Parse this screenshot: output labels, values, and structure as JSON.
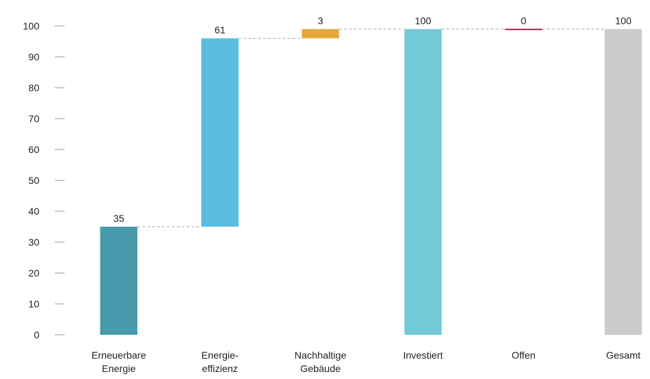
{
  "chart_data": {
    "type": "bar",
    "subtype": "waterfall",
    "title": "",
    "xlabel": "",
    "ylabel": "",
    "ylim": [
      0,
      100
    ],
    "yticks": [
      "0",
      "10",
      "20",
      "30",
      "40",
      "50",
      "60",
      "70",
      "80",
      "90",
      "100"
    ],
    "grid": false,
    "legend": "none",
    "categories": [
      [
        "Erneuerbare",
        "Energie"
      ],
      [
        "Energie-",
        "effizienz"
      ],
      [
        "Nachhaltige",
        "Gebäude"
      ],
      [
        "Investiert"
      ],
      [
        "Offen"
      ],
      [
        "Gesamt"
      ]
    ],
    "bars": [
      {
        "start": 0,
        "end": 35,
        "label": "35",
        "color": "#4799ab"
      },
      {
        "start": 35,
        "end": 96,
        "label": "61",
        "color": "#5bbde0"
      },
      {
        "start": 96,
        "end": 99,
        "label": "3",
        "color": "#e3a93a"
      },
      {
        "start": 0,
        "end": 99,
        "label": "100",
        "color": "#74c9d8"
      },
      {
        "start": 99,
        "end": 99,
        "label": "0",
        "color": "#a0285a"
      },
      {
        "start": 0,
        "end": 99,
        "label": "100",
        "color": "#cccccc"
      }
    ]
  }
}
